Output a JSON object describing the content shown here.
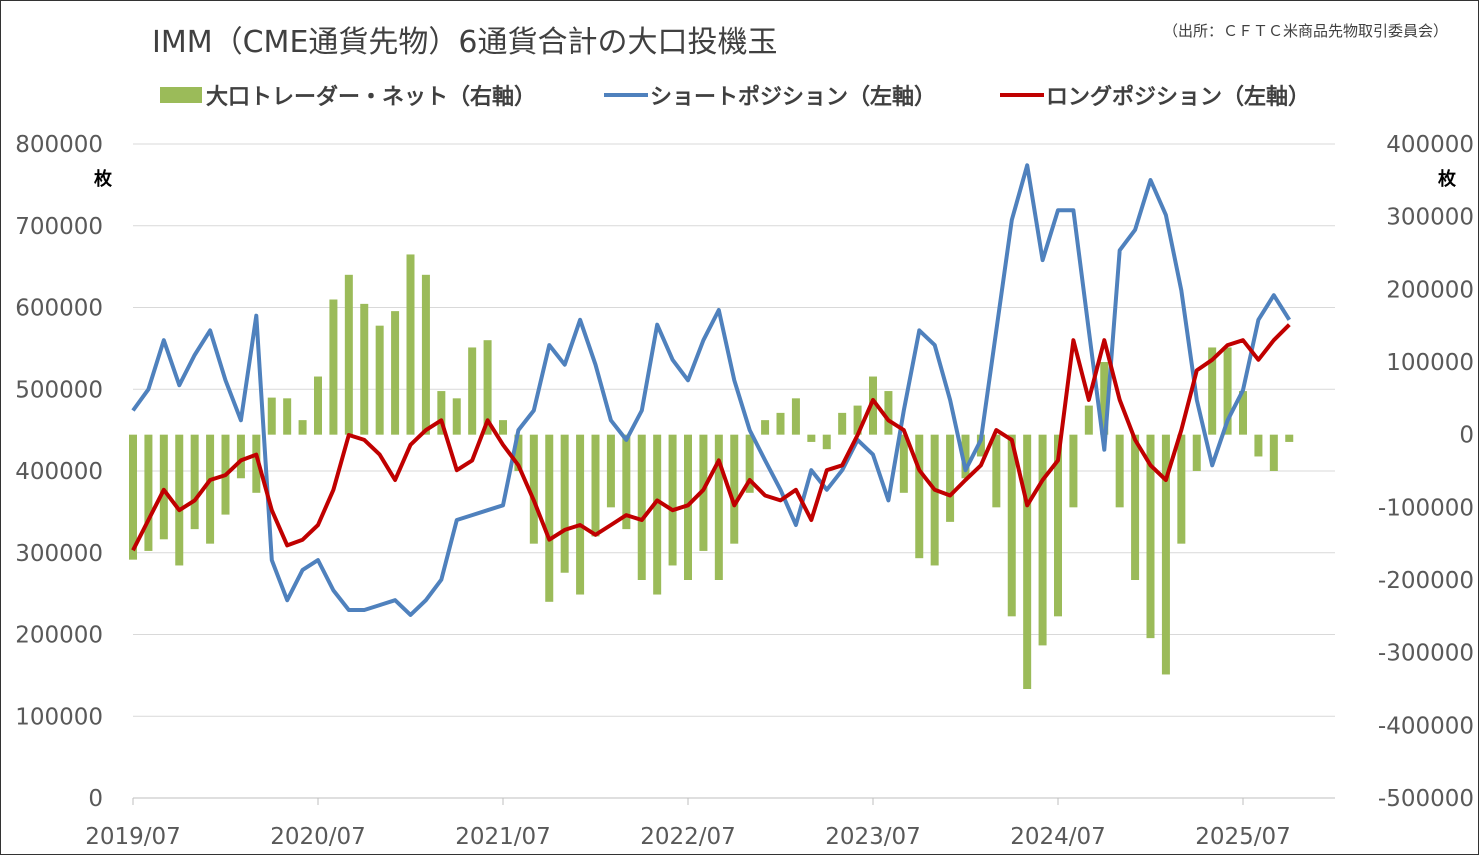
{
  "chart_data": {
    "type": "bar+line",
    "title": "IMM（CME通貨先物）6通貨合計の大口投機玉",
    "source": "（出所：ＣＦＴＣ米商品先物取引委員会）",
    "left_unit": "枚",
    "right_unit": "枚",
    "left_ylim": [
      0,
      800000
    ],
    "right_ylim": [
      -500000,
      400000
    ],
    "left_ticks": [
      "800000",
      "700000",
      "600000",
      "500000",
      "400000",
      "300000",
      "200000",
      "100000",
      "0"
    ],
    "right_ticks": [
      "400000",
      "300000",
      "200000",
      "100000",
      "0",
      "-100000",
      "-200000",
      "-300000",
      "-400000",
      "-500000"
    ],
    "x_ticks": [
      "2019/07",
      "2020/07",
      "2021/07",
      "2022/07",
      "2023/07",
      "2024/07",
      "2025/07"
    ],
    "grid": true,
    "legend_position": "top",
    "x": [
      "2019/07",
      "2019/08",
      "2019/09",
      "2019/10",
      "2019/11",
      "2019/12",
      "2020/01",
      "2020/02",
      "2020/03",
      "2020/04",
      "2020/05",
      "2020/06",
      "2020/07",
      "2020/08",
      "2020/09",
      "2020/10",
      "2020/11",
      "2020/12",
      "2021/01",
      "2021/02",
      "2021/03",
      "2021/04",
      "2021/05",
      "2021/06",
      "2021/07",
      "2021/08",
      "2021/09",
      "2021/10",
      "2021/11",
      "2021/12",
      "2022/01",
      "2022/02",
      "2022/03",
      "2022/04",
      "2022/05",
      "2022/06",
      "2022/07",
      "2022/08",
      "2022/09",
      "2022/10",
      "2022/11",
      "2022/12",
      "2023/01",
      "2023/02",
      "2023/03",
      "2023/04",
      "2023/05",
      "2023/06",
      "2023/07",
      "2023/08",
      "2023/09",
      "2023/10",
      "2023/11",
      "2023/12",
      "2024/01",
      "2024/02",
      "2024/03",
      "2024/04",
      "2024/05",
      "2024/06",
      "2024/07",
      "2024/08",
      "2024/09",
      "2024/10",
      "2024/11",
      "2024/12",
      "2025/01",
      "2025/02",
      "2025/03",
      "2025/04",
      "2025/05",
      "2025/06",
      "2025/07",
      "2025/08",
      "2025/09",
      "2025/10"
    ],
    "series": [
      {
        "name": "大口トレーダー・ネット（右軸）",
        "type": "bar",
        "axis": "right",
        "color": "#9BBB59",
        "values": [
          -172000,
          -160000,
          -144000,
          -180000,
          -130000,
          -150000,
          -110000,
          -60000,
          -80000,
          51000,
          50000,
          20000,
          80000,
          186000,
          220000,
          180000,
          150000,
          170000,
          248000,
          220000,
          60000,
          50000,
          120000,
          130000,
          20000,
          -50000,
          -150000,
          -230000,
          -190000,
          -220000,
          -140000,
          -100000,
          -130000,
          -200000,
          -220000,
          -180000,
          -200000,
          -160000,
          -200000,
          -150000,
          -80000,
          20000,
          30000,
          50000,
          -10000,
          -20000,
          30000,
          40000,
          80000,
          60000,
          -80000,
          -170000,
          -180000,
          -120000,
          -60000,
          -30000,
          -100000,
          -250000,
          -350000,
          -290000,
          -250000,
          -100000,
          40000,
          100000,
          -100000,
          -200000,
          -280000,
          -330000,
          -150000,
          -50000,
          120000,
          120000,
          60000,
          -30000,
          -50000,
          -10000
        ]
      },
      {
        "name": "ショートポジション（左軸）",
        "type": "line",
        "axis": "left",
        "color": "#4F81BD",
        "values": [
          474000,
          500000,
          560000,
          505000,
          542000,
          572000,
          511000,
          462000,
          590000,
          291000,
          242000,
          279000,
          291000,
          254000,
          230000,
          230000,
          236000,
          242000,
          224000,
          242000,
          267000,
          340000,
          346000,
          352000,
          358000,
          450000,
          474000,
          554000,
          530000,
          585000,
          530000,
          462000,
          438000,
          474000,
          579000,
          536000,
          511000,
          560000,
          597000,
          511000,
          450000,
          413000,
          377000,
          334000,
          401000,
          377000,
          401000,
          438000,
          420000,
          364000,
          474000,
          572000,
          554000,
          487000,
          401000,
          438000,
          572000,
          707000,
          774000,
          658000,
          719000,
          719000,
          572000,
          426000,
          670000,
          695000,
          756000,
          713000,
          621000,
          487000,
          407000,
          462000,
          499000,
          585000,
          615000,
          585000
        ]
      },
      {
        "name": "ロングポジション（左軸）",
        "type": "line",
        "axis": "left",
        "color": "#C00000",
        "values": [
          303000,
          340000,
          377000,
          352000,
          364000,
          389000,
          395000,
          413000,
          420000,
          352000,
          309000,
          316000,
          334000,
          377000,
          444000,
          438000,
          420000,
          389000,
          432000,
          450000,
          462000,
          401000,
          413000,
          462000,
          432000,
          407000,
          364000,
          316000,
          328000,
          334000,
          322000,
          334000,
          346000,
          340000,
          364000,
          352000,
          358000,
          377000,
          413000,
          358000,
          389000,
          370000,
          364000,
          377000,
          340000,
          401000,
          407000,
          444000,
          487000,
          462000,
          450000,
          401000,
          377000,
          370000,
          389000,
          407000,
          450000,
          438000,
          358000,
          389000,
          413000,
          560000,
          487000,
          560000,
          487000,
          438000,
          407000,
          389000,
          450000,
          523000,
          536000,
          554000,
          560000,
          536000,
          560000,
          579000
        ]
      }
    ]
  }
}
